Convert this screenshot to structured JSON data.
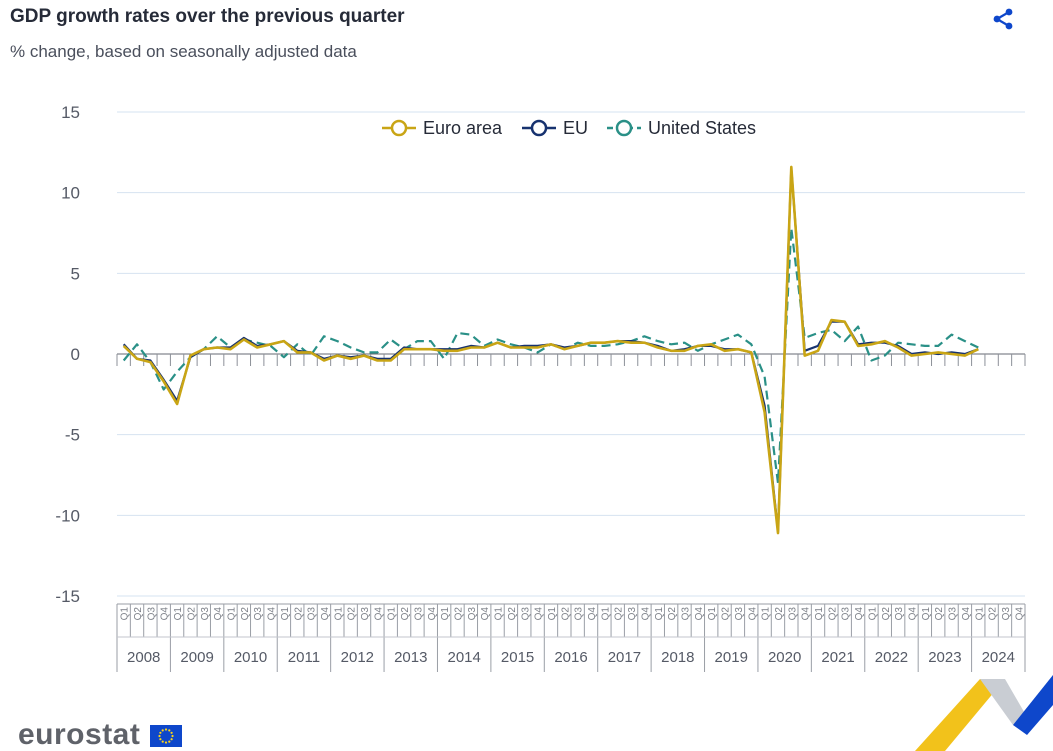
{
  "header": {
    "title": "GDP growth rates over the previous quarter",
    "subtitle": "% change, based on seasonally adjusted data"
  },
  "branding": {
    "logo_text": "eurostat"
  },
  "icons": {
    "share": "share-icon",
    "flag": "eu-flag-icon"
  },
  "colors": {
    "euro_area": "#c9a515",
    "eu": "#17326f",
    "united_states": "#2a9087",
    "grid": "#d6e3f0",
    "axis_text": "#555a66"
  },
  "chart_data": {
    "type": "line",
    "ylim": [
      -15,
      15
    ],
    "yticks": [
      15,
      10,
      5,
      0,
      -5,
      -10,
      -15
    ],
    "grid": true,
    "legend_position": "top-center",
    "quarter_labels": [
      "Q1",
      "Q2",
      "Q3",
      "Q4"
    ],
    "years": [
      "2008",
      "2009",
      "2010",
      "2011",
      "2012",
      "2013",
      "2014",
      "2015",
      "2016",
      "2017",
      "2018",
      "2019",
      "2020",
      "2021",
      "2022",
      "2023",
      "2024"
    ],
    "series": [
      {
        "name": "Euro area",
        "style": "solid",
        "values": [
          0.5,
          -0.3,
          -0.5,
          -1.7,
          -3.1,
          -0.1,
          0.3,
          0.4,
          0.3,
          0.9,
          0.4,
          0.6,
          0.8,
          0.1,
          0.1,
          -0.4,
          -0.1,
          -0.3,
          -0.1,
          -0.4,
          -0.4,
          0.3,
          0.3,
          0.3,
          0.2,
          0.2,
          0.4,
          0.4,
          0.7,
          0.4,
          0.4,
          0.4,
          0.6,
          0.3,
          0.5,
          0.7,
          0.7,
          0.8,
          0.7,
          0.7,
          0.4,
          0.2,
          0.2,
          0.5,
          0.6,
          0.2,
          0.3,
          0.1,
          -3.6,
          -11.1,
          11.6,
          -0.1,
          0.2,
          2.1,
          2.0,
          0.5,
          0.6,
          0.8,
          0.4,
          -0.1,
          0.0,
          0.1,
          0.0,
          -0.1,
          0.3
        ]
      },
      {
        "name": "EU",
        "style": "solid",
        "values": [
          0.6,
          -0.3,
          -0.4,
          -1.6,
          -2.9,
          -0.2,
          0.3,
          0.4,
          0.4,
          1.0,
          0.5,
          0.6,
          0.8,
          0.2,
          0.1,
          -0.3,
          -0.1,
          -0.2,
          -0.1,
          -0.3,
          -0.3,
          0.4,
          0.3,
          0.3,
          0.3,
          0.3,
          0.5,
          0.4,
          0.7,
          0.4,
          0.5,
          0.5,
          0.6,
          0.4,
          0.5,
          0.7,
          0.7,
          0.8,
          0.8,
          0.7,
          0.5,
          0.2,
          0.3,
          0.5,
          0.5,
          0.3,
          0.3,
          0.1,
          -3.2,
          -11.0,
          11.5,
          0.2,
          0.5,
          2.0,
          2.0,
          0.6,
          0.7,
          0.7,
          0.5,
          0.0,
          0.1,
          0.0,
          0.1,
          0.0,
          0.3
        ]
      },
      {
        "name": "United States",
        "style": "dashed",
        "values": [
          -0.4,
          0.6,
          -0.5,
          -2.2,
          -1.1,
          -0.2,
          0.3,
          1.1,
          0.4,
          0.9,
          0.7,
          0.5,
          -0.2,
          0.6,
          -0.1,
          1.1,
          0.8,
          0.4,
          0.1,
          0.1,
          0.9,
          0.3,
          0.8,
          0.8,
          -0.3,
          1.3,
          1.2,
          0.5,
          0.9,
          0.6,
          0.4,
          0.1,
          0.6,
          0.3,
          0.7,
          0.5,
          0.5,
          0.6,
          0.8,
          1.1,
          0.8,
          0.6,
          0.7,
          0.2,
          0.6,
          0.9,
          1.2,
          0.6,
          -1.4,
          -8.0,
          7.8,
          1.0,
          1.3,
          1.5,
          0.8,
          1.7,
          -0.4,
          -0.1,
          0.7,
          0.6,
          0.5,
          0.5,
          1.2,
          0.8,
          0.4
        ]
      }
    ]
  }
}
